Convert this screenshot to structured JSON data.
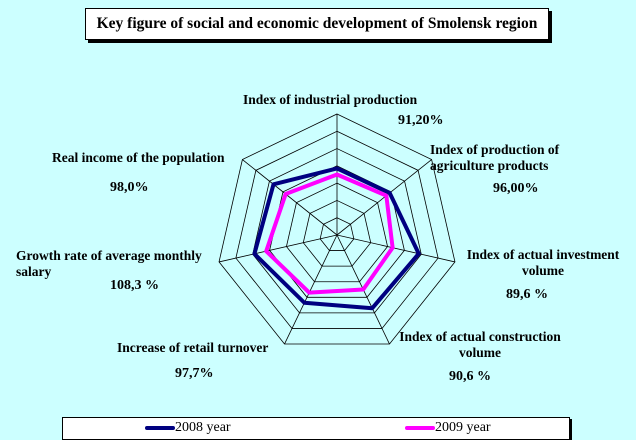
{
  "chart_data": {
    "type": "radar",
    "title": "Key figure of social and economic development of Smolensk region",
    "categories": [
      "Index of industrial production",
      "Index of production of agriculture products",
      "Index of actual investment volume",
      "Index of actual construction volume",
      "Increase of retail turnover",
      "Growth rate of average monthly salary",
      "Real income of the population"
    ],
    "annotations": [
      "91,20%",
      "96,00%",
      "89,6 %",
      "90,6 %",
      "97,7%",
      "108,3 %",
      "98,0%"
    ],
    "rlim": [
      0,
      140
    ],
    "rings": 7,
    "series": [
      {
        "name": "2008 year",
        "color": "#000080",
        "values": [
          77,
          78,
          97,
          94,
          87,
          98,
          94
        ]
      },
      {
        "name": "2009 year",
        "color": "#ff00ff",
        "values": [
          70,
          73,
          66,
          70,
          74,
          84,
          76
        ]
      }
    ],
    "legend": "bottom"
  }
}
